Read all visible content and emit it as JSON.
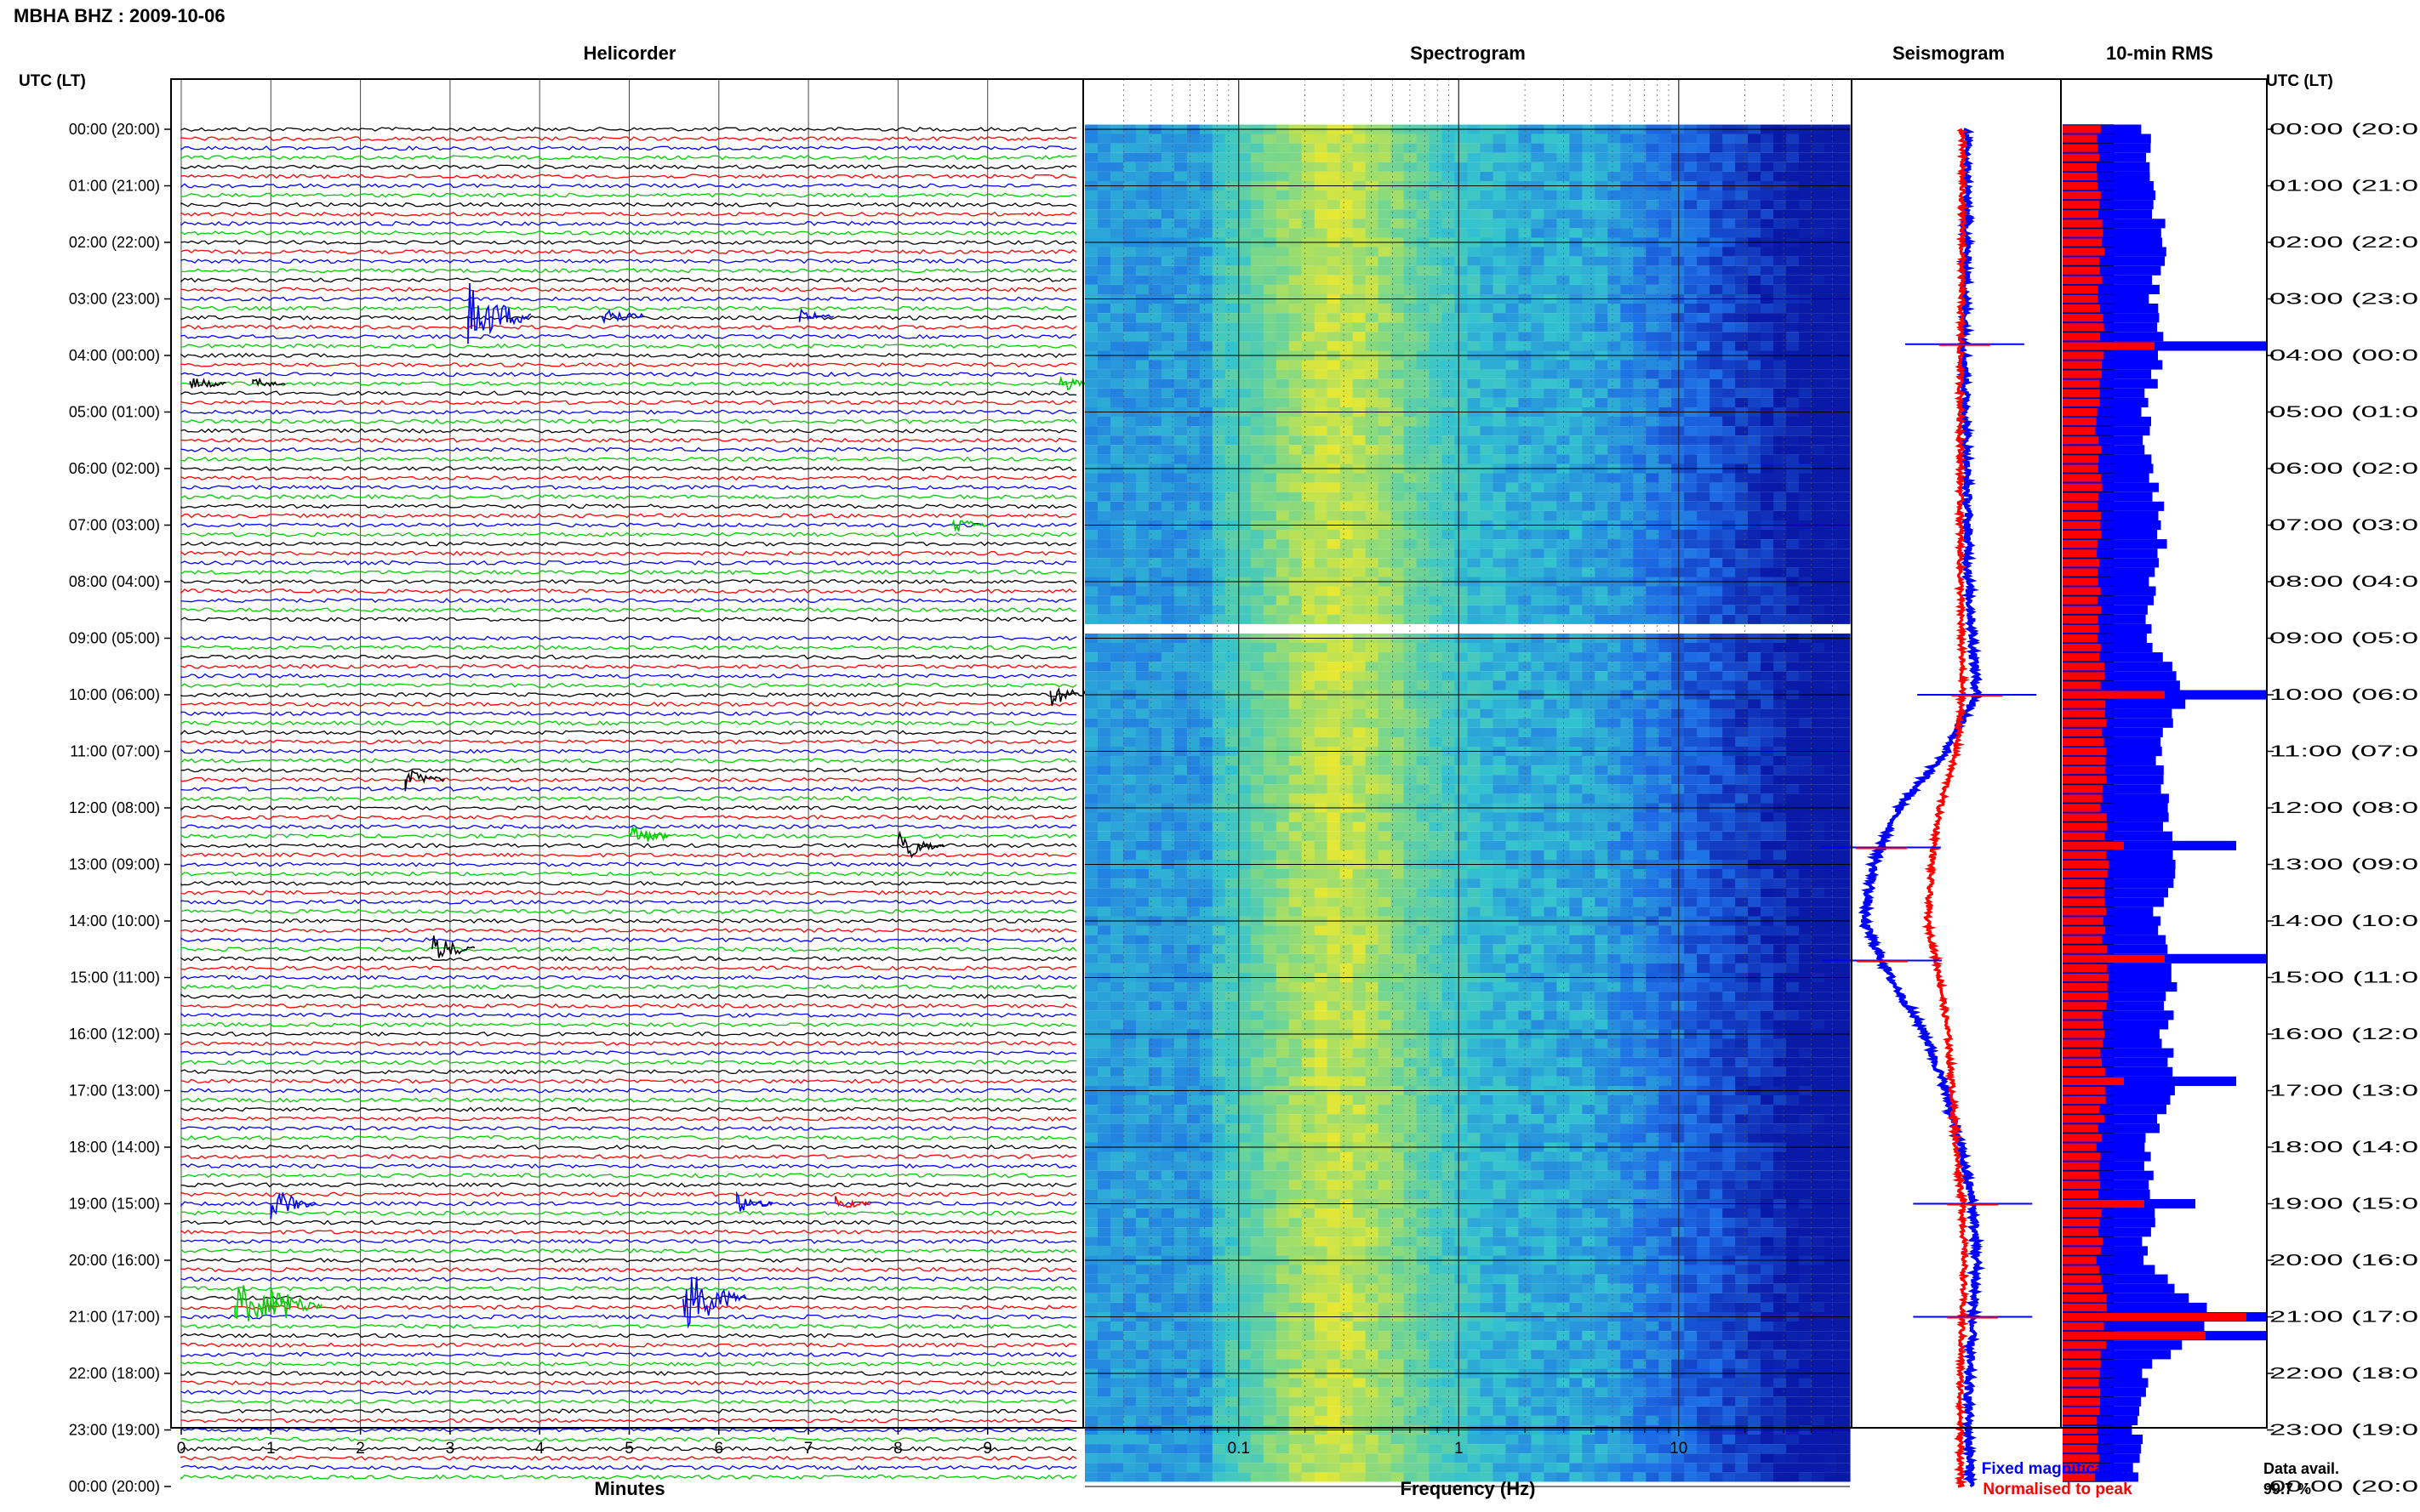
{
  "header": {
    "station": "MBHA BHZ : 2009-10-06"
  },
  "panels": {
    "helicorder_title": "Helicorder",
    "spectrogram_title": "Spectrogram",
    "seismogram_title": "Seismogram",
    "rms_title": "10-min RMS",
    "left_axis_title": "UTC (LT)",
    "right_axis_title": "UTC (LT)",
    "xlabel_helicorder": "Minutes",
    "xlabel_spectrogram": "Frequency (Hz)"
  },
  "legend": {
    "fixed": "Fixed magnification",
    "normalised": "Normalised to peak",
    "fixed_color": "#0000ff",
    "normalised_color": "#ff0000"
  },
  "data_avail": {
    "label": "Data avail.",
    "value": "99.7 %"
  },
  "colors": {
    "trace_cycle": [
      "#000000",
      "#ff0000",
      "#0000ff",
      "#00cc00"
    ],
    "spectrogram_low": "#0a1aa8",
    "spectrogram_mid": "#33c3d0",
    "spectrogram_high": "#e6e833"
  },
  "chart_data": [
    {
      "type": "line",
      "panel": "Helicorder",
      "xlabel": "Minutes",
      "x_ticks": [
        "0",
        "1",
        "2",
        "3",
        "4",
        "5",
        "6",
        "7",
        "8",
        "9"
      ],
      "xlim": [
        0,
        10
      ],
      "row_interval_minutes": 10,
      "time_ticks_left": [
        "00:00 (20:00)",
        "01:00 (21:00)",
        "02:00 (22:00)",
        "03:00 (23:00)",
        "04:00 (00:00)",
        "05:00 (01:00)",
        "06:00 (02:00)",
        "07:00 (03:00)",
        "08:00 (04:00)",
        "09:00 (05:00)",
        "10:00 (06:00)",
        "11:00 (07:00)",
        "12:00 (08:00)",
        "13:00 (09:00)",
        "14:00 (10:00)",
        "15:00 (11:00)",
        "16:00 (12:00)",
        "17:00 (13:00)",
        "18:00 (14:00)",
        "19:00 (15:00)",
        "20:00 (16:00)",
        "21:00 (17:00)",
        "22:00 (18:00)",
        "23:00 (19:00)",
        "00:00 (20:00)"
      ],
      "data_gap_hour": 8.8,
      "events": [
        {
          "hour": 3.3,
          "minute": 3.2,
          "color": "#0000ff",
          "amp": 3
        },
        {
          "hour": 3.3,
          "minute": 4.7,
          "color": "#0000ff",
          "amp": 1.2
        },
        {
          "hour": 3.3,
          "minute": 6.9,
          "color": "#0000ff",
          "amp": 0.7
        },
        {
          "hour": 4.5,
          "minute": 0.1,
          "color": "#000000",
          "amp": 0.8
        },
        {
          "hour": 4.5,
          "minute": 0.8,
          "color": "#000000",
          "amp": 0.6
        },
        {
          "hour": 4.5,
          "minute": 9.8,
          "color": "#00cc00",
          "amp": 0.8
        },
        {
          "hour": 7.0,
          "minute": 8.6,
          "color": "#00cc00",
          "amp": 0.9
        },
        {
          "hour": 10.0,
          "minute": 9.7,
          "color": "#000000",
          "amp": 1.2
        },
        {
          "hour": 11.5,
          "minute": 2.5,
          "color": "#000000",
          "amp": 1.1
        },
        {
          "hour": 12.5,
          "minute": 5.0,
          "color": "#00cc00",
          "amp": 1.3
        },
        {
          "hour": 12.7,
          "minute": 8.0,
          "color": "#000000",
          "amp": 1.6
        },
        {
          "hour": 14.5,
          "minute": 2.8,
          "color": "#000000",
          "amp": 1.4
        },
        {
          "hour": 19.0,
          "minute": 1.0,
          "color": "#0000ff",
          "amp": 1.6
        },
        {
          "hour": 19.0,
          "minute": 6.2,
          "color": "#0000ff",
          "amp": 0.9
        },
        {
          "hour": 19.0,
          "minute": 7.3,
          "color": "#ff0000",
          "amp": 0.8
        },
        {
          "hour": 20.7,
          "minute": 5.6,
          "color": "#0000ff",
          "amp": 3
        },
        {
          "hour": 20.8,
          "minute": 0.6,
          "color": "#00cc00",
          "amp": 2.5
        },
        {
          "hour": 20.8,
          "minute": 1.0,
          "color": "#00cc00",
          "amp": 2
        }
      ]
    },
    {
      "type": "heatmap",
      "panel": "Spectrogram",
      "xlabel": "Frequency (Hz)",
      "x_scale": "log",
      "x_ticks": [
        "0.1",
        "1",
        "10"
      ],
      "xlim": [
        0.02,
        60
      ]
    },
    {
      "type": "line",
      "panel": "Seismogram",
      "series": [
        {
          "name": "Fixed magnification",
          "color": "#0000ff",
          "hours": [
            0,
            2,
            4,
            6,
            8,
            10,
            11,
            12,
            13,
            14,
            15,
            16,
            17,
            18,
            19,
            20,
            21,
            22,
            23,
            24
          ],
          "offset": [
            0.55,
            0.55,
            0.54,
            0.55,
            0.56,
            0.6,
            0.45,
            0.22,
            0.1,
            0.05,
            0.18,
            0.35,
            0.45,
            0.52,
            0.58,
            0.6,
            0.58,
            0.56,
            0.56,
            0.57
          ]
        },
        {
          "name": "Normalised to peak",
          "color": "#ff0000",
          "hours": [
            0,
            2,
            4,
            6,
            8,
            10,
            11,
            12,
            13,
            14,
            15,
            16,
            17,
            18,
            19,
            20,
            21,
            22,
            23,
            24
          ],
          "offset": [
            0.53,
            0.53,
            0.52,
            0.52,
            0.52,
            0.53,
            0.5,
            0.42,
            0.38,
            0.36,
            0.42,
            0.46,
            0.48,
            0.5,
            0.53,
            0.54,
            0.53,
            0.52,
            0.52,
            0.52
          ]
        }
      ],
      "spikes_hours": [
        3.8,
        10.0,
        12.7,
        14.7,
        19.0,
        21.0
      ]
    },
    {
      "type": "bar",
      "panel": "10-min RMS",
      "bars_per_hour": 6,
      "hours": [
        0,
        1,
        2,
        3,
        4,
        5,
        6,
        7,
        8,
        9,
        10,
        11,
        12,
        13,
        14,
        15,
        16,
        17,
        18,
        19,
        20,
        21,
        22,
        23,
        24
      ],
      "blue_rms": [
        0.4,
        0.42,
        0.5,
        0.45,
        0.48,
        0.4,
        0.42,
        0.5,
        0.45,
        0.42,
        0.6,
        0.48,
        0.5,
        0.55,
        0.45,
        0.55,
        0.5,
        0.55,
        0.4,
        0.45,
        0.4,
        0.75,
        0.4,
        0.36,
        0.38
      ],
      "red_rms": [
        0.18,
        0.18,
        0.2,
        0.18,
        0.2,
        0.17,
        0.18,
        0.18,
        0.18,
        0.18,
        0.2,
        0.2,
        0.2,
        0.22,
        0.2,
        0.22,
        0.2,
        0.2,
        0.18,
        0.19,
        0.18,
        0.22,
        0.18,
        0.17,
        0.17
      ],
      "spike_hours": [
        3.8,
        10.0,
        12.7,
        14.7,
        16.8,
        19.0,
        21.0,
        21.3
      ],
      "spike_blue": [
        1.0,
        1.0,
        0.85,
        1.0,
        0.85,
        0.65,
        1.0,
        1.0
      ],
      "spike_red": [
        0.45,
        0.5,
        0.3,
        0.5,
        0.3,
        0.4,
        0.9,
        0.7
      ]
    }
  ]
}
